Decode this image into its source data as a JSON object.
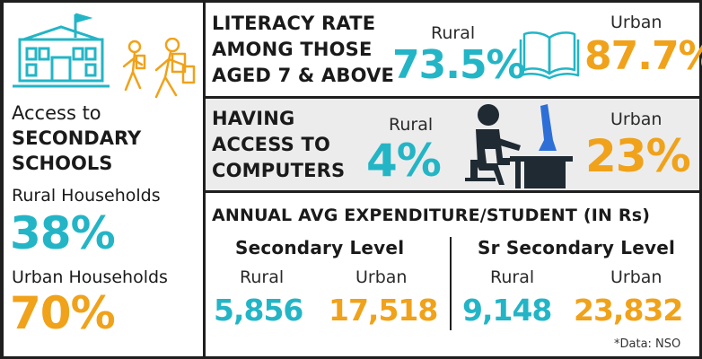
{
  "colors": {
    "teal": "#23b5c6",
    "orange": "#f0a21a",
    "dark": "#1f1f1f",
    "band": "#ececec"
  },
  "icons": [
    "school-building-icon",
    "walking-children-icon",
    "open-book-icon",
    "person-at-computer-icon"
  ],
  "schools": {
    "title_line1": "Access to",
    "title_line2": "SECONDARY",
    "title_line3": "SCHOOLS",
    "rural_label": "Rural Households",
    "rural_value": "38%",
    "urban_label": "Urban Households",
    "urban_value": "70%"
  },
  "literacy": {
    "heading_line1": "LITERACY RATE",
    "heading_line2": "AMONG THOSE",
    "heading_line3": "AGED 7 & ABOVE",
    "rural_label": "Rural",
    "rural_value": "73.5%",
    "urban_label": "Urban",
    "urban_value": "87.7%"
  },
  "computers": {
    "heading_line1": "HAVING",
    "heading_line2": "ACCESS TO",
    "heading_line3": "COMPUTERS",
    "rural_label": "Rural",
    "rural_value": "4%",
    "urban_label": "Urban",
    "urban_value": "23%"
  },
  "expenditure": {
    "heading": "ANNUAL AVG EXPENDITURE/STUDENT (IN Rs)",
    "secondary": {
      "title": "Secondary Level",
      "rural_label": "Rural",
      "rural_value": "5,856",
      "urban_label": "Urban",
      "urban_value": "17,518"
    },
    "sr_secondary": {
      "title": "Sr Secondary Level",
      "rural_label": "Rural",
      "rural_value": "9,148",
      "urban_label": "Urban",
      "urban_value": "23,832"
    }
  },
  "footnote": "*Data: NSO"
}
